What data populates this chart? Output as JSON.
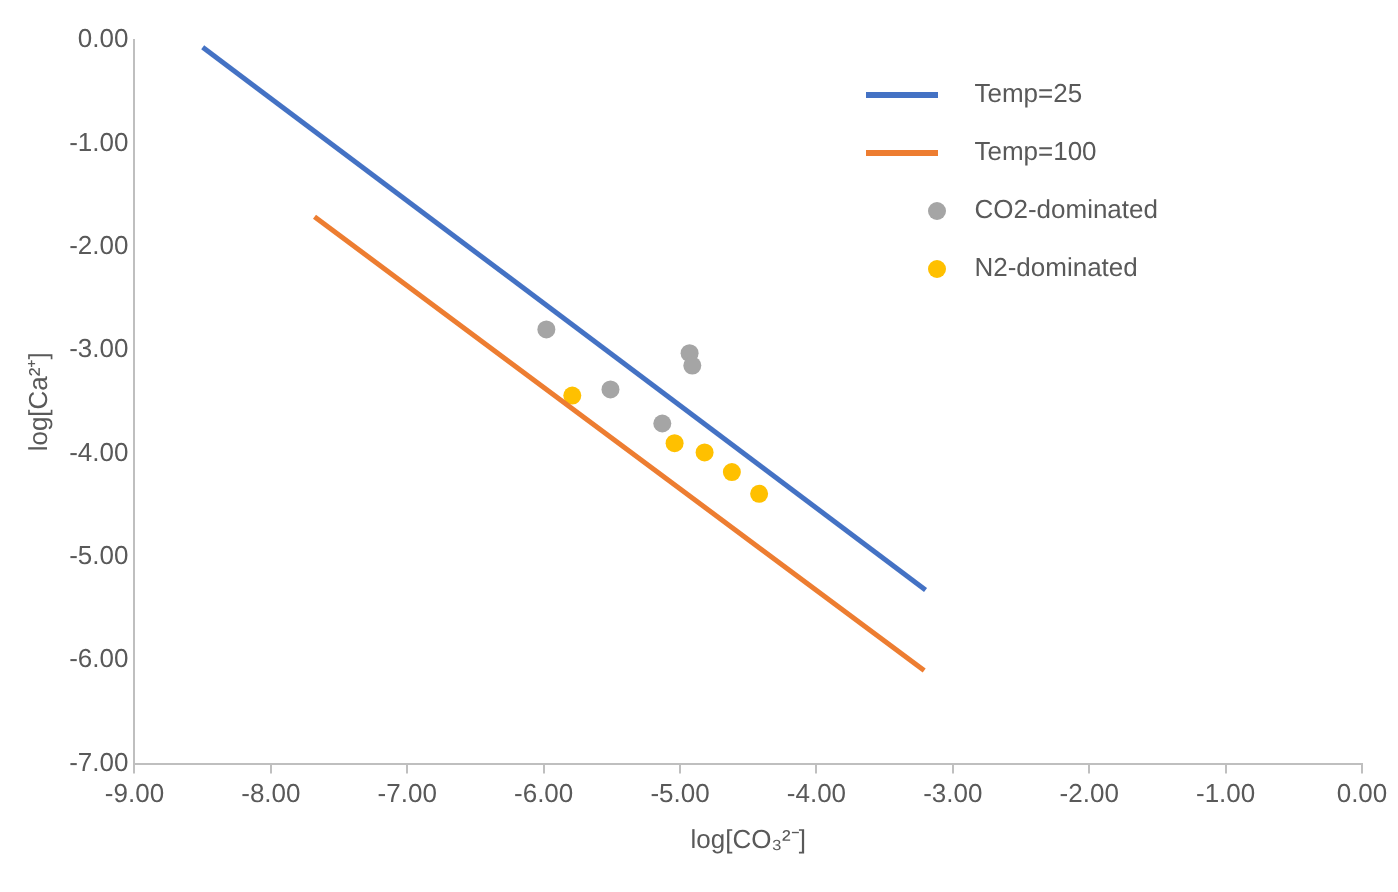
{
  "chart_data": {
    "type": "scatter",
    "xlabel": "log[CO₃²⁻]",
    "ylabel": "log[Ca²⁺]",
    "xlim": [
      -9,
      0
    ],
    "ylim": [
      -7,
      0
    ],
    "xticks": [
      {
        "value": -9,
        "label": "-9.00"
      },
      {
        "value": -8,
        "label": "-8.00"
      },
      {
        "value": -7,
        "label": "-7.00"
      },
      {
        "value": -6,
        "label": "-6.00"
      },
      {
        "value": -5,
        "label": "-5.00"
      },
      {
        "value": -4,
        "label": "-4.00"
      },
      {
        "value": -3,
        "label": "-3.00"
      },
      {
        "value": -2,
        "label": "-2.00"
      },
      {
        "value": -1,
        "label": "-1.00"
      },
      {
        "value": 0,
        "label": "0.00"
      }
    ],
    "yticks": [
      {
        "value": 0,
        "label": "0.00"
      },
      {
        "value": -1,
        "label": "-1.00"
      },
      {
        "value": -2,
        "label": "-2.00"
      },
      {
        "value": -3,
        "label": "-3.00"
      },
      {
        "value": -4,
        "label": "-4.00"
      },
      {
        "value": -5,
        "label": "-5.00"
      },
      {
        "value": -6,
        "label": "-6.00"
      },
      {
        "value": -7,
        "label": "-7.00"
      }
    ],
    "grid": false,
    "legend": "top right",
    "marker": "circle",
    "series": [
      {
        "name": "Temp=25",
        "type": "line",
        "marker": "none",
        "color": "#4472c4",
        "x": [
          -8.5,
          -3.2
        ],
        "values": [
          -0.07,
          -5.32
        ]
      },
      {
        "name": "Temp=100",
        "type": "line",
        "marker": "none",
        "color": "#ed7d31",
        "x": [
          -7.68,
          -3.21
        ],
        "values": [
          -1.71,
          -6.1
        ]
      },
      {
        "name": "CO2-dominated",
        "color": "#a5a5a5",
        "x": [
          -5.98,
          -5.51,
          -4.93,
          -4.91,
          -5.13
        ],
        "values": [
          -2.8,
          -3.38,
          -3.03,
          -3.15,
          -3.71
        ]
      },
      {
        "name": "N2-dominated",
        "color": "#ffc000",
        "x": [
          -5.79,
          -5.04,
          -4.82,
          -4.62,
          -4.42
        ],
        "values": [
          -3.44,
          -3.9,
          -3.99,
          -4.18,
          -4.39
        ]
      }
    ]
  }
}
